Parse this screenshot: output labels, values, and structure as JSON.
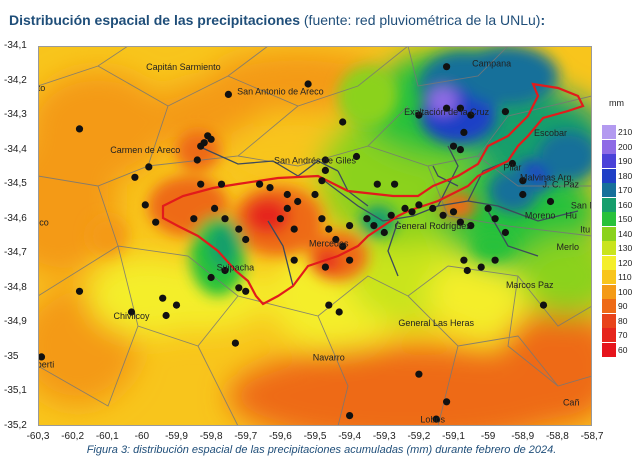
{
  "title": {
    "main": "Distribución espacial de las precipitaciones",
    "source": " (fuente: red pluviométrica de la UNLu)",
    "end": ":"
  },
  "map": {
    "y_ticks": [
      "-34,1",
      "-34,2",
      "-34,3",
      "-34,4",
      "-34,5",
      "-34,6",
      "-34,7",
      "-34,8",
      "-34,9",
      "-35",
      "-35,1",
      "-35,2"
    ],
    "x_ticks": [
      "-60,3",
      "-60,2",
      "-60,1",
      "-60",
      "-59,9",
      "-59,8",
      "-59,7",
      "-59,6",
      "-59,5",
      "-59,4",
      "-59,3",
      "-59,2",
      "-59,1",
      "-59",
      "-58,9",
      "-58,8",
      "-58,7"
    ],
    "places": [
      {
        "name": "Capitán Sarmiento",
        "lon": -59.88,
        "lat": -34.17
      },
      {
        "name": "San Antonio de Areco",
        "lon": -59.6,
        "lat": -34.24
      },
      {
        "name": "Campana",
        "lon": -58.99,
        "lat": -34.16
      },
      {
        "name": "alto",
        "lon": -60.3,
        "lat": -34.23
      },
      {
        "name": "Exaltación de la Cruz",
        "lon": -59.12,
        "lat": -34.3
      },
      {
        "name": "Carmen de Areco",
        "lon": -59.99,
        "lat": -34.41
      },
      {
        "name": "San Andrés de Giles",
        "lon": -59.5,
        "lat": -34.44
      },
      {
        "name": "Escobar",
        "lon": -58.82,
        "lat": -34.36
      },
      {
        "name": "Pilar",
        "lon": -58.93,
        "lat": -34.46
      },
      {
        "name": "Malvinas Arg.",
        "lon": -58.83,
        "lat": -34.49
      },
      {
        "name": "J. C. Paz",
        "lon": -58.79,
        "lat": -34.51
      },
      {
        "name": "San M.",
        "lon": -58.72,
        "lat": -34.57
      },
      {
        "name": "uco",
        "lon": -60.29,
        "lat": -34.62
      },
      {
        "name": "General Rodríguez",
        "lon": -59.16,
        "lat": -34.63
      },
      {
        "name": "Moreno",
        "lon": -58.85,
        "lat": -34.6
      },
      {
        "name": "Hu",
        "lon": -58.76,
        "lat": -34.6
      },
      {
        "name": "Itu",
        "lon": -58.72,
        "lat": -34.64
      },
      {
        "name": "Mercedes",
        "lon": -59.46,
        "lat": -34.68
      },
      {
        "name": "Suipacha",
        "lon": -59.73,
        "lat": -34.75
      },
      {
        "name": "Merlo",
        "lon": -58.77,
        "lat": -34.69
      },
      {
        "name": "Marcos Paz",
        "lon": -58.88,
        "lat": -34.8
      },
      {
        "name": "Chivilcoy",
        "lon": -60.03,
        "lat": -34.89
      },
      {
        "name": "General Las Heras",
        "lon": -59.15,
        "lat": -34.91
      },
      {
        "name": "Alberti",
        "lon": -60.29,
        "lat": -35.03
      },
      {
        "name": "Navarro",
        "lon": -59.46,
        "lat": -35.01
      },
      {
        "name": "Lobos",
        "lon": -59.16,
        "lat": -35.19
      },
      {
        "name": "Cañ",
        "lon": -58.76,
        "lat": -35.14
      }
    ],
    "stations": [
      [
        -60.18,
        -34.34
      ],
      [
        -59.82,
        -34.38
      ],
      [
        -59.81,
        -34.36
      ],
      [
        -59.8,
        -34.37
      ],
      [
        -59.83,
        -34.39
      ],
      [
        -59.84,
        -34.43
      ],
      [
        -60.02,
        -34.48
      ],
      [
        -59.98,
        -34.45
      ],
      [
        -59.75,
        -34.24
      ],
      [
        -59.52,
        -34.21
      ],
      [
        -59.42,
        -34.32
      ],
      [
        -59.38,
        -34.42
      ],
      [
        -59.47,
        -34.43
      ],
      [
        -59.47,
        -34.46
      ],
      [
        -59.48,
        -34.49
      ],
      [
        -59.12,
        -34.16
      ],
      [
        -59.12,
        -34.28
      ],
      [
        -59.08,
        -34.28
      ],
      [
        -59.05,
        -34.3
      ],
      [
        -59.07,
        -34.35
      ],
      [
        -59.2,
        -34.3
      ],
      [
        -59.1,
        -34.39
      ],
      [
        -59.08,
        -34.4
      ],
      [
        -58.95,
        -34.29
      ],
      [
        -58.93,
        -34.44
      ],
      [
        -58.9,
        -34.49
      ],
      [
        -59.32,
        -34.5
      ],
      [
        -59.27,
        -34.5
      ],
      [
        -59.83,
        -34.5
      ],
      [
        -59.77,
        -34.5
      ],
      [
        -59.66,
        -34.5
      ],
      [
        -59.63,
        -34.51
      ],
      [
        -59.58,
        -34.53
      ],
      [
        -59.55,
        -34.55
      ],
      [
        -59.5,
        -34.53
      ],
      [
        -59.99,
        -34.56
      ],
      [
        -59.96,
        -34.61
      ],
      [
        -59.85,
        -34.6
      ],
      [
        -59.79,
        -34.57
      ],
      [
        -59.76,
        -34.6
      ],
      [
        -59.72,
        -34.63
      ],
      [
        -59.7,
        -34.66
      ],
      [
        -59.6,
        -34.6
      ],
      [
        -59.58,
        -34.57
      ],
      [
        -59.56,
        -34.63
      ],
      [
        -59.48,
        -34.6
      ],
      [
        -59.46,
        -34.63
      ],
      [
        -59.44,
        -34.66
      ],
      [
        -59.42,
        -34.68
      ],
      [
        -59.4,
        -34.62
      ],
      [
        -59.35,
        -34.6
      ],
      [
        -59.33,
        -34.62
      ],
      [
        -59.3,
        -34.64
      ],
      [
        -59.28,
        -34.59
      ],
      [
        -59.24,
        -34.57
      ],
      [
        -59.22,
        -34.58
      ],
      [
        -59.2,
        -34.56
      ],
      [
        -59.16,
        -34.57
      ],
      [
        -59.13,
        -34.59
      ],
      [
        -59.1,
        -34.58
      ],
      [
        -59.08,
        -34.61
      ],
      [
        -59.05,
        -34.62
      ],
      [
        -59.0,
        -34.57
      ],
      [
        -58.98,
        -34.6
      ],
      [
        -58.95,
        -34.64
      ],
      [
        -59.07,
        -34.72
      ],
      [
        -59.06,
        -34.75
      ],
      [
        -59.02,
        -34.74
      ],
      [
        -58.98,
        -34.72
      ],
      [
        -59.76,
        -34.75
      ],
      [
        -59.8,
        -34.77
      ],
      [
        -59.7,
        -34.81
      ],
      [
        -59.72,
        -34.8
      ],
      [
        -59.9,
        -34.85
      ],
      [
        -59.93,
        -34.88
      ],
      [
        -59.94,
        -34.83
      ],
      [
        -60.18,
        -34.81
      ],
      [
        -60.03,
        -34.87
      ],
      [
        -59.73,
        -34.96
      ],
      [
        -59.46,
        -34.85
      ],
      [
        -59.43,
        -34.87
      ],
      [
        -59.4,
        -34.72
      ],
      [
        -59.4,
        -35.17
      ],
      [
        -59.2,
        -35.05
      ],
      [
        -59.12,
        -35.13
      ],
      [
        -59.15,
        -35.18
      ],
      [
        -58.84,
        -34.85
      ],
      [
        -60.29,
        -35.0
      ],
      [
        -59.56,
        -34.72
      ],
      [
        -59.47,
        -34.74
      ],
      [
        -58.9,
        -34.53
      ],
      [
        -58.82,
        -34.55
      ]
    ]
  },
  "legend": {
    "unit": "mm",
    "entries": [
      {
        "label": "210",
        "color": "#b39af0"
      },
      {
        "label": "200",
        "color": "#8e6be6"
      },
      {
        "label": "190",
        "color": "#4a42d8"
      },
      {
        "label": "180",
        "color": "#1f3fc6"
      },
      {
        "label": "170",
        "color": "#16709a"
      },
      {
        "label": "160",
        "color": "#169e6c"
      },
      {
        "label": "150",
        "color": "#27c13a"
      },
      {
        "label": "140",
        "color": "#8bd21c"
      },
      {
        "label": "130",
        "color": "#c9e41d"
      },
      {
        "label": "120",
        "color": "#f4ee2a"
      },
      {
        "label": "110",
        "color": "#f8c51c"
      },
      {
        "label": "100",
        "color": "#f49a16"
      },
      {
        "label": "90",
        "color": "#ee6a16"
      },
      {
        "label": "80",
        "color": "#e8431a"
      },
      {
        "label": "70",
        "color": "#e6251c"
      },
      {
        "label": "60",
        "color": "#e6141c"
      }
    ]
  },
  "caption": "Figura 3: distribución espacial de las precipitaciones acumuladas (mm) durante febrero de 2024."
}
